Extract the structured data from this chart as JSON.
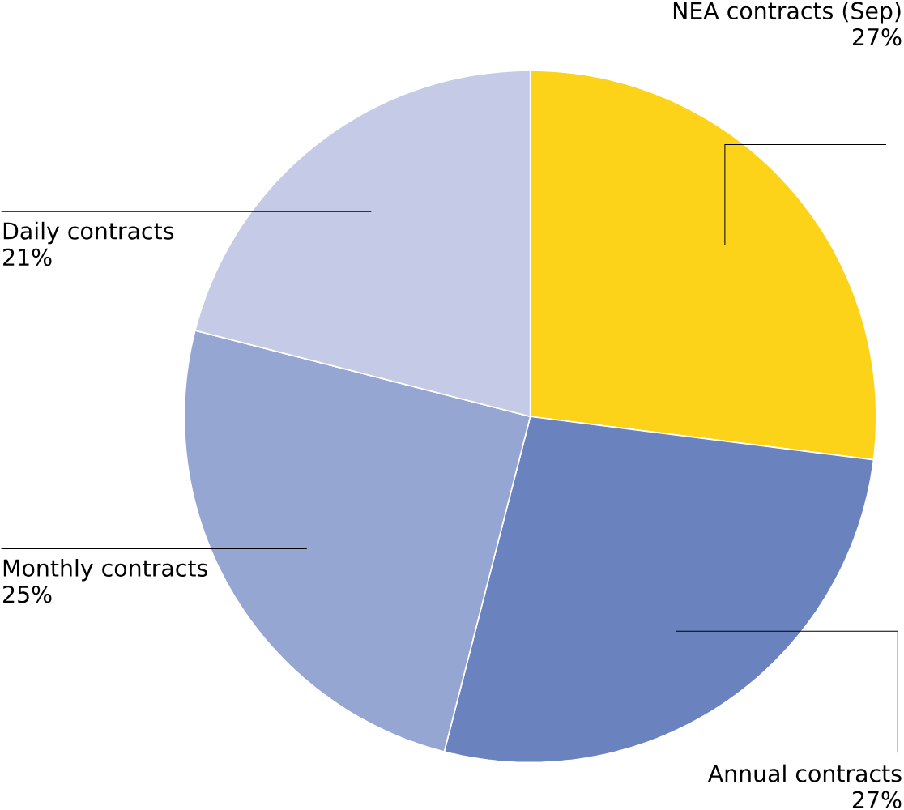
{
  "chart_data": {
    "type": "pie",
    "categories": [
      "NEA contracts (Sep)",
      "Annual contracts",
      "Monthly contracts",
      "Daily  contracts"
    ],
    "values": [
      27,
      27,
      25,
      21
    ],
    "value_labels": [
      "27%",
      "27%",
      "25%",
      "21%"
    ],
    "colors": [
      "#fdd31a",
      "#6a83bf",
      "#96a6d3",
      "#c5cae6"
    ]
  }
}
